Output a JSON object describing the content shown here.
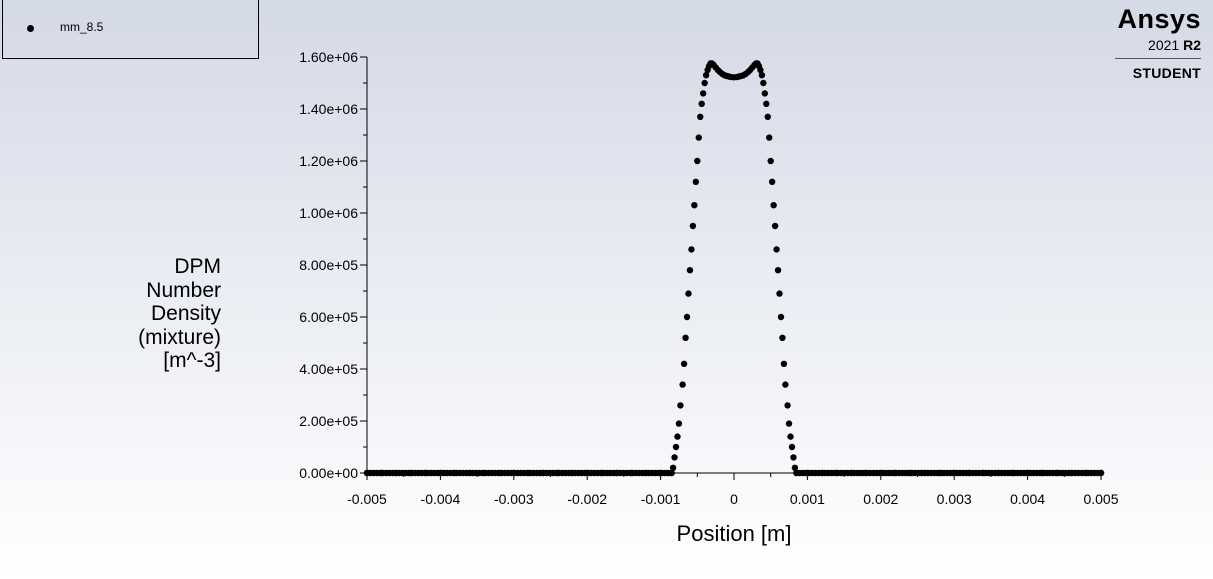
{
  "legend": {
    "series_label": "mm_8.5"
  },
  "branding": {
    "name": "Ansys",
    "version_year": "2021",
    "version_release": "R2",
    "edition": "STUDENT"
  },
  "chart_data": {
    "type": "scatter",
    "title": "",
    "xlabel": "Position [m]",
    "ylabel": "DPM Number Density (mixture) [m^-3]",
    "ylabel_lines": [
      "DPM",
      "Number",
      "Density",
      "(mixture)",
      "[m^-3]"
    ],
    "xlim": [
      -0.005,
      0.005
    ],
    "ylim": [
      0,
      1600000
    ],
    "x_ticks": [
      -0.005,
      -0.004,
      -0.003,
      -0.002,
      -0.001,
      0,
      0.001,
      0.002,
      0.003,
      0.004,
      0.005
    ],
    "x_tick_labels": [
      "-0.005",
      "-0.004",
      "-0.003",
      "-0.002",
      "-0.001",
      "0",
      "0.001",
      "0.002",
      "0.003",
      "0.004",
      "0.005"
    ],
    "y_ticks": [
      0,
      200000,
      400000,
      600000,
      800000,
      1000000,
      1200000,
      1400000,
      1600000
    ],
    "y_tick_labels": [
      "0.00e+00",
      "2.00e+05",
      "4.00e+05",
      "6.00e+05",
      "8.00e+05",
      "1.00e+06",
      "1.20e+06",
      "1.40e+06",
      "1.60e+06"
    ],
    "grid": false,
    "legend_position": "top-left",
    "marker_color": "#000000",
    "series": [
      {
        "name": "mm_8.5",
        "points": [
          [
            -0.005,
            0
          ],
          [
            -0.0048,
            0
          ],
          [
            -0.0046,
            0
          ],
          [
            -0.0044,
            0
          ],
          [
            -0.0042,
            0
          ],
          [
            -0.004,
            0
          ],
          [
            -0.0038,
            0
          ],
          [
            -0.0036,
            0
          ],
          [
            -0.0034,
            0
          ],
          [
            -0.0032,
            0
          ],
          [
            -0.003,
            0
          ],
          [
            -0.0028,
            0
          ],
          [
            -0.0026,
            0
          ],
          [
            -0.0024,
            0
          ],
          [
            -0.0022,
            0
          ],
          [
            -0.002,
            0
          ],
          [
            -0.0018,
            0
          ],
          [
            -0.0016,
            0
          ],
          [
            -0.0014,
            0
          ],
          [
            -0.0012,
            0
          ],
          [
            -0.001,
            0
          ],
          [
            -0.00085,
            0
          ],
          [
            -0.00083,
            20000
          ],
          [
            -0.00081,
            60000
          ],
          [
            -0.00079,
            100000
          ],
          [
            -0.00077,
            140000
          ],
          [
            -0.00075,
            190000
          ],
          [
            -0.00073,
            260000
          ],
          [
            -0.0007,
            340000
          ],
          [
            -0.00068,
            420000
          ],
          [
            -0.00066,
            520000
          ],
          [
            -0.00064,
            600000
          ],
          [
            -0.00062,
            690000
          ],
          [
            -0.0006,
            780000
          ],
          [
            -0.00058,
            860000
          ],
          [
            -0.00056,
            950000
          ],
          [
            -0.00054,
            1030000
          ],
          [
            -0.00052,
            1120000
          ],
          [
            -0.0005,
            1200000
          ],
          [
            -0.00048,
            1290000
          ],
          [
            -0.00046,
            1370000
          ],
          [
            -0.00044,
            1420000
          ],
          [
            -0.00042,
            1460000
          ],
          [
            -0.0004,
            1500000
          ],
          [
            -0.00038,
            1530000
          ],
          [
            -0.00036,
            1550000
          ],
          [
            -0.00034,
            1565000
          ],
          [
            -0.00032,
            1575000
          ],
          [
            -0.0003,
            1575000
          ],
          [
            -0.00028,
            1570000
          ],
          [
            -0.00025,
            1560000
          ],
          [
            -0.00022,
            1550000
          ],
          [
            -0.00019,
            1542000
          ],
          [
            -0.00016,
            1535000
          ],
          [
            -0.00013,
            1530000
          ],
          [
            -0.0001,
            1527000
          ],
          [
            -7e-05,
            1525000
          ],
          [
            -4e-05,
            1523000
          ],
          [
            0,
            1522000
          ],
          [
            4e-05,
            1523000
          ],
          [
            7e-05,
            1525000
          ],
          [
            0.0001,
            1527000
          ],
          [
            0.00013,
            1530000
          ],
          [
            0.00016,
            1535000
          ],
          [
            0.00019,
            1542000
          ],
          [
            0.00022,
            1550000
          ],
          [
            0.00025,
            1560000
          ],
          [
            0.00028,
            1570000
          ],
          [
            0.0003,
            1575000
          ],
          [
            0.00032,
            1575000
          ],
          [
            0.00034,
            1565000
          ],
          [
            0.00036,
            1550000
          ],
          [
            0.00038,
            1530000
          ],
          [
            0.0004,
            1500000
          ],
          [
            0.00042,
            1460000
          ],
          [
            0.00044,
            1420000
          ],
          [
            0.00046,
            1370000
          ],
          [
            0.00048,
            1290000
          ],
          [
            0.0005,
            1200000
          ],
          [
            0.00052,
            1120000
          ],
          [
            0.00054,
            1030000
          ],
          [
            0.00056,
            950000
          ],
          [
            0.00058,
            860000
          ],
          [
            0.0006,
            780000
          ],
          [
            0.00062,
            690000
          ],
          [
            0.00064,
            600000
          ],
          [
            0.00066,
            520000
          ],
          [
            0.00068,
            420000
          ],
          [
            0.0007,
            340000
          ],
          [
            0.00073,
            260000
          ],
          [
            0.00075,
            190000
          ],
          [
            0.00077,
            140000
          ],
          [
            0.00079,
            100000
          ],
          [
            0.00081,
            60000
          ],
          [
            0.00083,
            20000
          ],
          [
            0.00085,
            0
          ],
          [
            0.001,
            0
          ],
          [
            0.0012,
            0
          ],
          [
            0.0014,
            0
          ],
          [
            0.0016,
            0
          ],
          [
            0.0018,
            0
          ],
          [
            0.002,
            0
          ],
          [
            0.0022,
            0
          ],
          [
            0.0024,
            0
          ],
          [
            0.0026,
            0
          ],
          [
            0.0028,
            0
          ],
          [
            0.003,
            0
          ],
          [
            0.0032,
            0
          ],
          [
            0.0034,
            0
          ],
          [
            0.0036,
            0
          ],
          [
            0.0038,
            0
          ],
          [
            0.004,
            0
          ],
          [
            0.0042,
            0
          ],
          [
            0.0044,
            0
          ],
          [
            0.0046,
            0
          ],
          [
            0.0048,
            0
          ],
          [
            0.005,
            0
          ]
        ]
      }
    ]
  }
}
